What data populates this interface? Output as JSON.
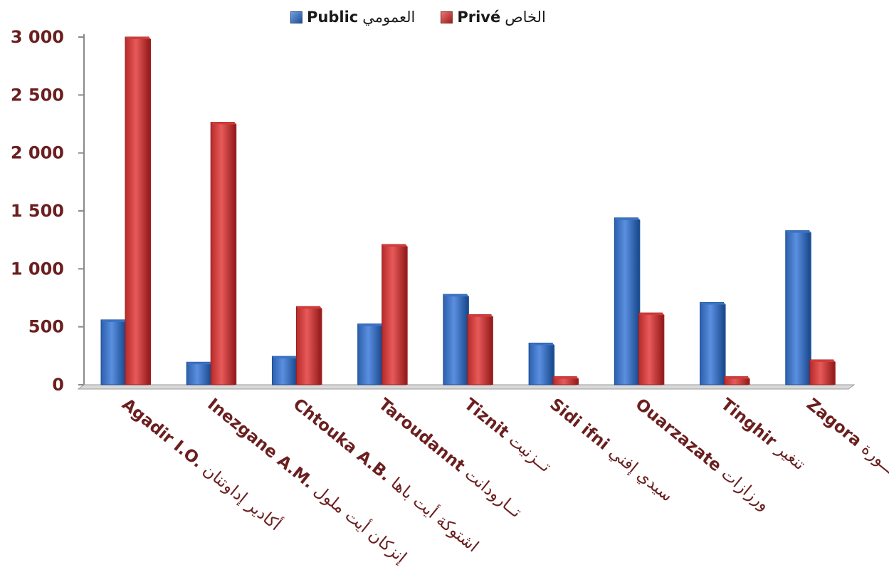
{
  "legend": {
    "public_arabic": "العمومي",
    "public_latin": "Public",
    "prive_arabic": "الخاص",
    "prive_latin": "Privé"
  },
  "colors": {
    "public": "#3a72c4",
    "public_dark": "#1d4e93",
    "prive": "#d43a3a",
    "prive_dark": "#9a1f1f",
    "label": "#6b1f1f"
  },
  "chart_data": {
    "type": "bar",
    "title": "",
    "xlabel": "",
    "ylabel": "",
    "ylim": [
      0,
      3000
    ],
    "yticks": [
      0,
      500,
      1000,
      1500,
      2000,
      2500,
      3000
    ],
    "ytick_labels": [
      "0",
      "500",
      "1 000",
      "1 500",
      "2 000",
      "2 500",
      "3 000"
    ],
    "grid": false,
    "legend_position": "top-center",
    "categories": [
      {
        "latin": "Agadir  I.O.",
        "arabic": "أكادير  إداوتنان"
      },
      {
        "latin": "Inezgane A.M.",
        "arabic": "إنزكان أيت ملول"
      },
      {
        "latin": "Chtouka A.B.",
        "arabic": "اشتوكة أيت  باها"
      },
      {
        "latin": "Taroudannt",
        "arabic": "تــارودانت"
      },
      {
        "latin": "Tiznit",
        "arabic": "تــزنيت"
      },
      {
        "latin": "Sidi ifni",
        "arabic": "سيدي إفني"
      },
      {
        "latin": "Ouarzazate",
        "arabic": "ورزازات"
      },
      {
        "latin": "Tinghir",
        "arabic": "تنغير"
      },
      {
        "latin": "Zagora",
        "arabic": "زاكــورة"
      }
    ],
    "series": [
      {
        "name": "Public العمومي",
        "key": "public",
        "values": [
          560,
          195,
          245,
          525,
          780,
          360,
          1440,
          710,
          1330
        ]
      },
      {
        "name": "Privé الخاص",
        "key": "prive",
        "values": [
          3000,
          2265,
          675,
          1210,
          605,
          70,
          620,
          70,
          215
        ]
      }
    ]
  }
}
